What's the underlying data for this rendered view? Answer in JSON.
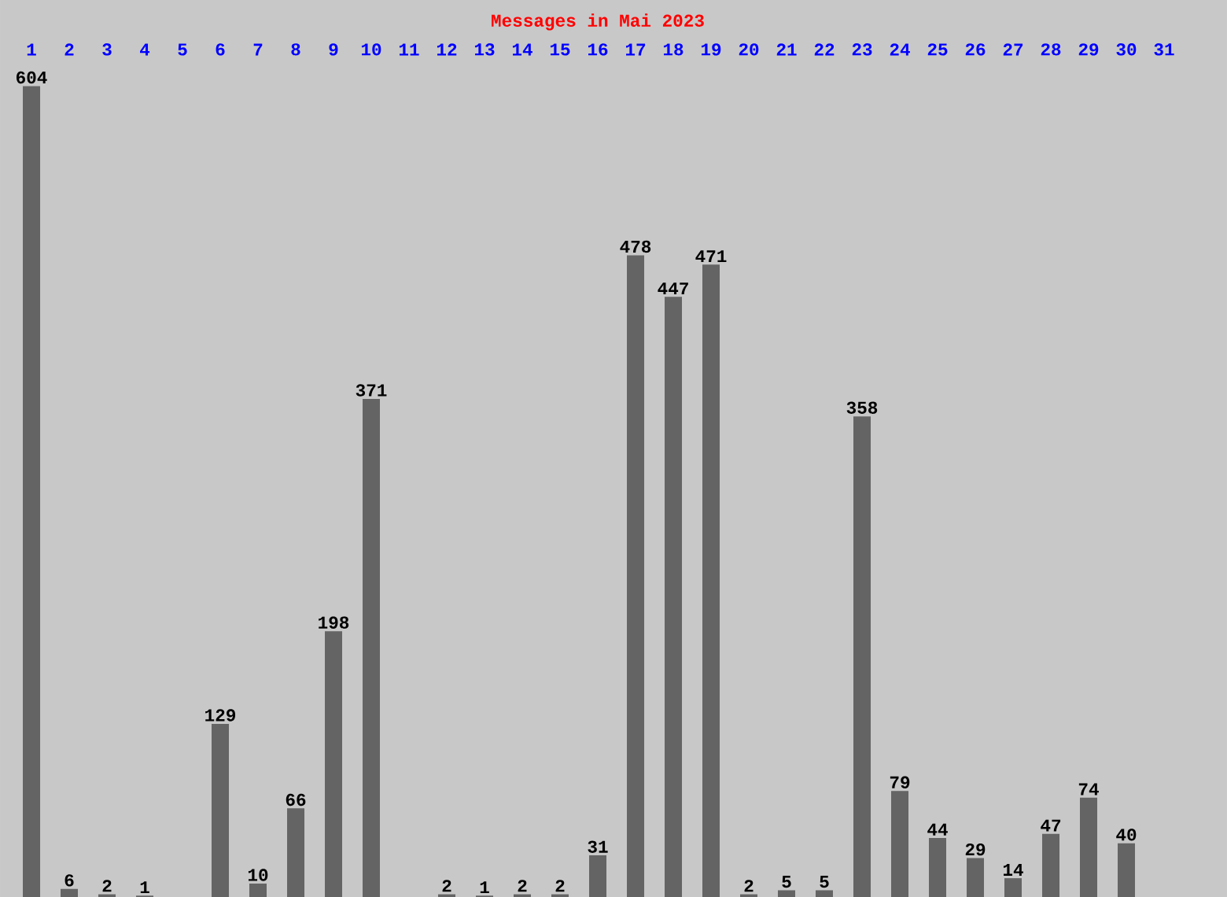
{
  "chart_data": {
    "type": "bar",
    "title": "Messages in Mai 2023",
    "categories": [
      "1",
      "2",
      "3",
      "4",
      "5",
      "6",
      "7",
      "8",
      "9",
      "10",
      "11",
      "12",
      "13",
      "14",
      "15",
      "16",
      "17",
      "18",
      "19",
      "20",
      "21",
      "22",
      "23",
      "24",
      "25",
      "26",
      "27",
      "28",
      "29",
      "30",
      "31"
    ],
    "values": [
      604,
      6,
      2,
      1,
      null,
      129,
      10,
      66,
      198,
      371,
      null,
      2,
      1,
      2,
      2,
      31,
      478,
      447,
      471,
      2,
      5,
      5,
      358,
      79,
      44,
      29,
      14,
      47,
      74,
      40,
      null
    ],
    "color": "#646464",
    "data_labels": true,
    "tick_labels": "x"
  }
}
